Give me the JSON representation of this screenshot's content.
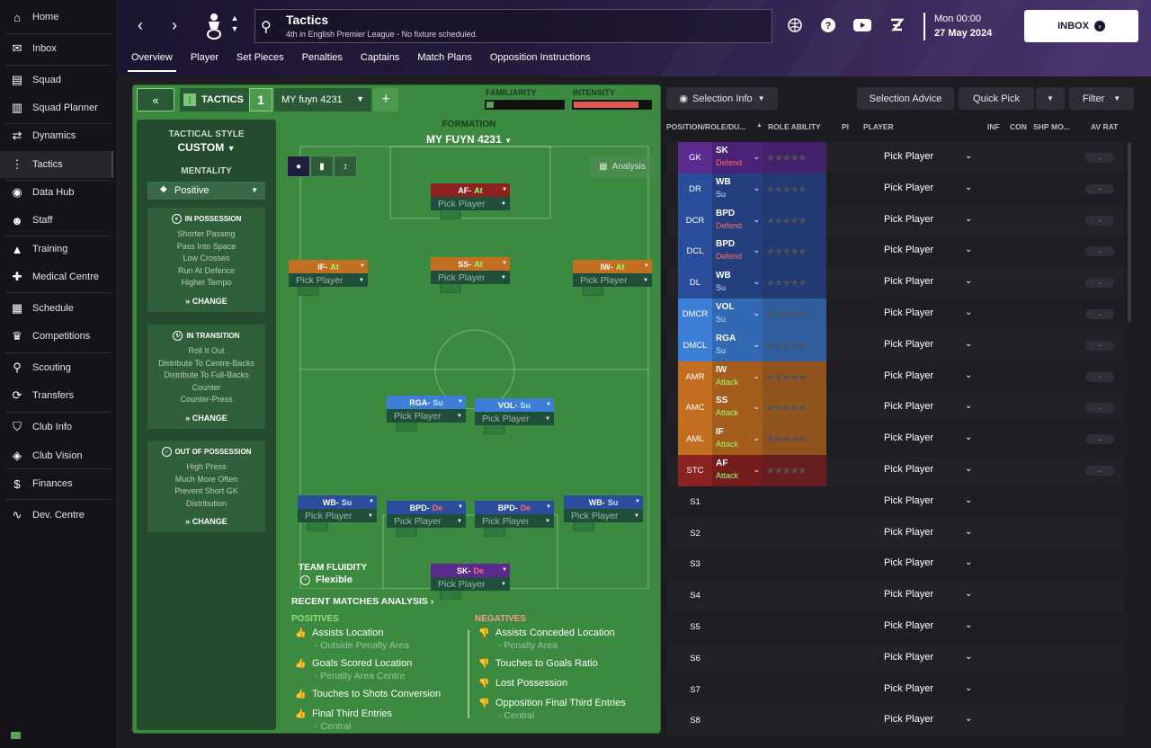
{
  "sidebar": {
    "items": [
      {
        "label": "Home",
        "icon": "home-icon",
        "glyph": "⌂"
      },
      {
        "label": "Inbox",
        "icon": "inbox-icon",
        "glyph": "✉"
      },
      {
        "label": "Squad",
        "icon": "squad-icon",
        "glyph": "▤"
      },
      {
        "label": "Squad Planner",
        "icon": "squad-planner-icon",
        "glyph": "▥"
      },
      {
        "label": "Dynamics",
        "icon": "dynamics-icon",
        "glyph": "⇄"
      },
      {
        "label": "Tactics",
        "icon": "tactics-icon",
        "glyph": "⋮"
      },
      {
        "label": "Data Hub",
        "icon": "data-hub-icon",
        "glyph": "◉"
      },
      {
        "label": "Staff",
        "icon": "staff-icon",
        "glyph": "☻"
      },
      {
        "label": "Training",
        "icon": "training-icon",
        "glyph": "▲"
      },
      {
        "label": "Medical Centre",
        "icon": "medical-centre-icon",
        "glyph": "✚"
      },
      {
        "label": "Schedule",
        "icon": "schedule-icon",
        "glyph": "▦"
      },
      {
        "label": "Competitions",
        "icon": "competitions-icon",
        "glyph": "♛"
      },
      {
        "label": "Scouting",
        "icon": "scouting-icon",
        "glyph": "⚲"
      },
      {
        "label": "Transfers",
        "icon": "transfers-icon",
        "glyph": "⟳"
      },
      {
        "label": "Club Info",
        "icon": "club-info-icon",
        "glyph": "⛉"
      },
      {
        "label": "Club Vision",
        "icon": "club-vision-icon",
        "glyph": "◈"
      },
      {
        "label": "Finances",
        "icon": "finances-icon",
        "glyph": "$"
      },
      {
        "label": "Dev. Centre",
        "icon": "dev-centre-icon",
        "glyph": "∿"
      }
    ],
    "active": "Tactics"
  },
  "header": {
    "title": "Tactics",
    "subtitle": "4th in English Premier League - No fixture scheduled.",
    "date_time": "Mon 00:00",
    "date_day": "27 May 2024",
    "inbox_label": "INBOX",
    "tabs": [
      "Overview",
      "Player",
      "Set Pieces",
      "Penalties",
      "Captains",
      "Match Plans",
      "Opposition Instructions"
    ],
    "active_tab": "Overview"
  },
  "board": {
    "tactics_label": "TACTICS",
    "tactic_number": "1",
    "tactic_name": "MY fuyn 4231",
    "familiarity_label": "FAMILIARITY",
    "intensity_label": "INTENSITY",
    "familiarity_level": 0.02,
    "intensity_level": 0.85,
    "formation_label": "FORMATION",
    "formation_name": "MY FUYN 4231",
    "analysis_label": "Analysis",
    "team_fluidity_label": "TEAM FLUIDITY",
    "team_fluidity_value": "Flexible"
  },
  "style_panel": {
    "tactical_style_label": "TACTICAL STYLE",
    "tactical_style_value": "CUSTOM",
    "mentality_label": "MENTALITY",
    "mentality_value": "Positive",
    "change_label": "CHANGE",
    "in_possession": {
      "title": "IN POSSESSION",
      "lines": [
        "Shorter Passing",
        "Pass Into Space",
        "Low Crosses",
        "Run At Defence",
        "Higher Tempo"
      ]
    },
    "in_transition": {
      "title": "IN TRANSITION",
      "lines": [
        "Roll It Out",
        "Distribute To Centre-Backs",
        "Distribute To Full-Backs",
        "Counter",
        "Counter-Press"
      ]
    },
    "out_of_possession": {
      "title": "OUT OF POSSESSION",
      "lines": [
        "High Press",
        "Much More Often",
        "Prevent Short GK",
        "Distribution"
      ]
    }
  },
  "players_on_pitch": [
    {
      "id": "af",
      "role": "AF",
      "duty": "At",
      "color": "#8b2323",
      "duty_color": "#9cff6a",
      "pick": "Pick Player"
    },
    {
      "id": "if",
      "role": "IF",
      "duty": "At",
      "color": "#c26f22",
      "duty_color": "#9cff6a",
      "pick": "Pick Player"
    },
    {
      "id": "ss",
      "role": "SS",
      "duty": "At",
      "color": "#c26f22",
      "duty_color": "#9cff6a",
      "pick": "Pick Player"
    },
    {
      "id": "iw",
      "role": "IW",
      "duty": "At",
      "color": "#c26f22",
      "duty_color": "#9cff6a",
      "pick": "Pick Player"
    },
    {
      "id": "rga",
      "role": "RGA",
      "duty": "Su",
      "color": "#3d7fd6",
      "duty_color": "#bfe3ff",
      "pick": "Pick Player"
    },
    {
      "id": "vol",
      "role": "VOL",
      "duty": "Su",
      "color": "#3d7fd6",
      "duty_color": "#bfe3ff",
      "pick": "Pick Player"
    },
    {
      "id": "wbl",
      "role": "WB",
      "duty": "Su",
      "color": "#2b4e9c",
      "duty_color": "#bfe3ff",
      "pick": "Pick Player"
    },
    {
      "id": "bpdl",
      "role": "BPD",
      "duty": "De",
      "color": "#2b4e9c",
      "duty_color": "#ff6a6a",
      "pick": "Pick Player"
    },
    {
      "id": "bpdr",
      "role": "BPD",
      "duty": "De",
      "color": "#2b4e9c",
      "duty_color": "#ff6a6a",
      "pick": "Pick Player"
    },
    {
      "id": "wbr",
      "role": "WB",
      "duty": "Su",
      "color": "#2b4e9c",
      "duty_color": "#bfe3ff",
      "pick": "Pick Player"
    },
    {
      "id": "sk",
      "role": "SK",
      "duty": "De",
      "color": "#5b2a8f",
      "duty_color": "#ff6a6a",
      "pick": "Pick Player"
    }
  ],
  "recent_matches": {
    "title": "RECENT MATCHES ANALYSIS",
    "positives_label": "POSITIVES",
    "negatives_label": "NEGATIVES",
    "positives": [
      {
        "text": "Assists Location",
        "sub": "- Outside Penalty Area"
      },
      {
        "text": "Goals Scored Location",
        "sub": "- Penalty Area Centre"
      },
      {
        "text": "Touches to Shots Conversion",
        "sub": ""
      },
      {
        "text": "Final Third Entries",
        "sub": "- Central"
      }
    ],
    "negatives": [
      {
        "text": "Assists Conceded Location",
        "sub": "- Penalty Area"
      },
      {
        "text": "Touches to Goals Ratio",
        "sub": ""
      },
      {
        "text": "Lost Possession",
        "sub": ""
      },
      {
        "text": "Opposition Final Third Entries",
        "sub": "- Central"
      }
    ]
  },
  "right_panel": {
    "selection_info": "Selection Info",
    "selection_advice": "Selection Advice",
    "quick_pick": "Quick Pick",
    "filter": "Filter",
    "columns": [
      "POSITION/ROLE/DU...",
      "ROLE ABILITY",
      "PI",
      "PLAYER",
      "INF",
      "CON",
      "SHP",
      "MO...",
      "AV RAT"
    ],
    "rows": [
      {
        "pos": "GK",
        "role": "SK",
        "duty": "Defend",
        "pos_color": "#5b2a8f",
        "role_color": "#4a2278",
        "duty_color": "#ff6a6a",
        "player": "Pick Player",
        "rating": "-"
      },
      {
        "pos": "DR",
        "role": "WB",
        "duty": "Su",
        "pos_color": "#2b4e9c",
        "role_color": "#233f80",
        "duty_color": "#bfe3ff",
        "player": "Pick Player",
        "rating": "-"
      },
      {
        "pos": "DCR",
        "role": "BPD",
        "duty": "Defend",
        "pos_color": "#2b4e9c",
        "role_color": "#233f80",
        "duty_color": "#ff6a6a",
        "player": "Pick Player",
        "rating": "-"
      },
      {
        "pos": "DCL",
        "role": "BPD",
        "duty": "Defend",
        "pos_color": "#2b4e9c",
        "role_color": "#233f80",
        "duty_color": "#ff6a6a",
        "player": "Pick Player",
        "rating": "-"
      },
      {
        "pos": "DL",
        "role": "WB",
        "duty": "Su",
        "pos_color": "#2b4e9c",
        "role_color": "#233f80",
        "duty_color": "#bfe3ff",
        "player": "Pick Player",
        "rating": "-"
      },
      {
        "pos": "DMCR",
        "role": "VOL",
        "duty": "Su",
        "pos_color": "#3d7fd6",
        "role_color": "#3369b3",
        "duty_color": "#bfe3ff",
        "player": "Pick Player",
        "rating": "-"
      },
      {
        "pos": "DMCL",
        "role": "RGA",
        "duty": "Su",
        "pos_color": "#3d7fd6",
        "role_color": "#3369b3",
        "duty_color": "#bfe3ff",
        "player": "Pick Player",
        "rating": "-"
      },
      {
        "pos": "AMR",
        "role": "IW",
        "duty": "Attack",
        "pos_color": "#c26f22",
        "role_color": "#a45d1c",
        "duty_color": "#9cff6a",
        "player": "Pick Player",
        "rating": "-"
      },
      {
        "pos": "AMC",
        "role": "SS",
        "duty": "Attack",
        "pos_color": "#c26f22",
        "role_color": "#a45d1c",
        "duty_color": "#9cff6a",
        "player": "Pick Player",
        "rating": "-"
      },
      {
        "pos": "AML",
        "role": "IF",
        "duty": "Attack",
        "pos_color": "#c26f22",
        "role_color": "#a45d1c",
        "duty_color": "#9cff6a",
        "player": "Pick Player",
        "rating": "-"
      },
      {
        "pos": "STC",
        "role": "AF",
        "duty": "Attack",
        "pos_color": "#8b2323",
        "role_color": "#751d1d",
        "duty_color": "#9cff6a",
        "player": "Pick Player",
        "rating": "-"
      },
      {
        "pos": "S1",
        "role": "",
        "duty": "",
        "pos_color": "",
        "role_color": "",
        "duty_color": "",
        "player": "Pick Player",
        "rating": ""
      },
      {
        "pos": "S2",
        "role": "",
        "duty": "",
        "pos_color": "",
        "role_color": "",
        "duty_color": "",
        "player": "Pick Player",
        "rating": ""
      },
      {
        "pos": "S3",
        "role": "",
        "duty": "",
        "pos_color": "",
        "role_color": "",
        "duty_color": "",
        "player": "Pick Player",
        "rating": ""
      },
      {
        "pos": "S4",
        "role": "",
        "duty": "",
        "pos_color": "",
        "role_color": "",
        "duty_color": "",
        "player": "Pick Player",
        "rating": ""
      },
      {
        "pos": "S5",
        "role": "",
        "duty": "",
        "pos_color": "",
        "role_color": "",
        "duty_color": "",
        "player": "Pick Player",
        "rating": ""
      },
      {
        "pos": "S6",
        "role": "",
        "duty": "",
        "pos_color": "",
        "role_color": "",
        "duty_color": "",
        "player": "Pick Player",
        "rating": ""
      },
      {
        "pos": "S7",
        "role": "",
        "duty": "",
        "pos_color": "",
        "role_color": "",
        "duty_color": "",
        "player": "Pick Player",
        "rating": ""
      },
      {
        "pos": "S8",
        "role": "",
        "duty": "",
        "pos_color": "",
        "role_color": "",
        "duty_color": "",
        "player": "Pick Player",
        "rating": ""
      }
    ]
  }
}
